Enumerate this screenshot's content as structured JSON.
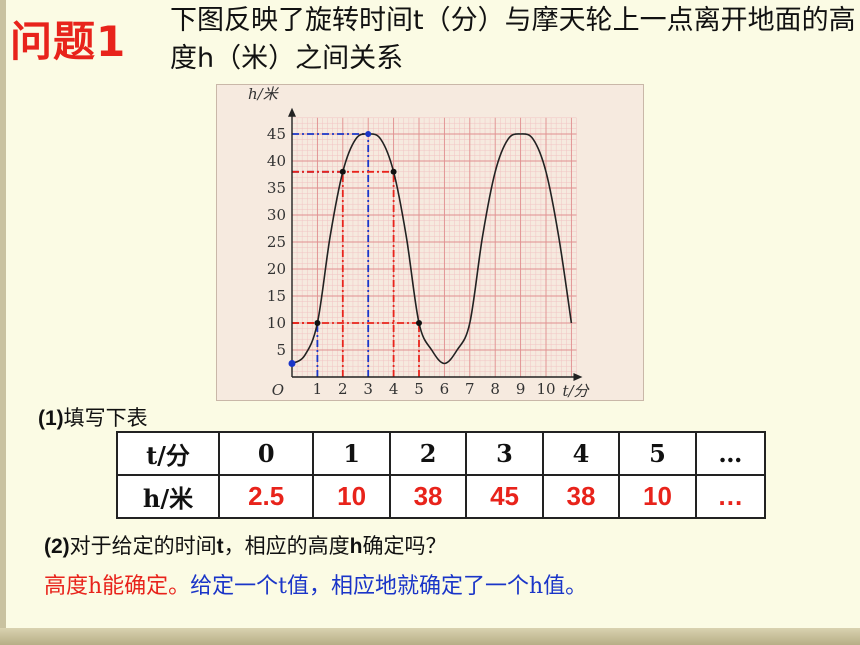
{
  "title_tag": "问题1",
  "question": "下图反映了旋转时间t（分）与摩天轮上一点离开地面的高度h（米）之间关系",
  "chart_data": {
    "type": "line",
    "ylabel": "h/米",
    "xlabel": "t/分",
    "origin_label": "O",
    "x_ticks": [
      1,
      2,
      3,
      4,
      5,
      6,
      7,
      8,
      9,
      10
    ],
    "y_ticks": [
      5,
      10,
      15,
      20,
      25,
      30,
      35,
      40,
      45
    ],
    "xlim": [
      0,
      11.2
    ],
    "ylim": [
      0,
      48
    ],
    "grid": true,
    "curve": {
      "x": [
        0,
        0.5,
        1,
        1.5,
        2,
        2.5,
        3,
        3.5,
        4,
        4.5,
        5,
        5.5,
        6,
        6.5,
        7,
        7.5,
        8,
        8.5,
        9,
        9.5,
        10,
        10.5,
        11
      ],
      "y": [
        2.5,
        4,
        10,
        26,
        38,
        44,
        45,
        44,
        38,
        26,
        10,
        5,
        2.5,
        5,
        10,
        26,
        38,
        44,
        45,
        44,
        38,
        26,
        10
      ]
    },
    "marked_points": [
      {
        "x": 0,
        "y": 2.5
      },
      {
        "x": 1,
        "y": 10
      },
      {
        "x": 2,
        "y": 38
      },
      {
        "x": 3,
        "y": 45
      },
      {
        "x": 4,
        "y": 38
      },
      {
        "x": 5,
        "y": 10
      }
    ]
  },
  "task1": {
    "num": "(1)",
    "text": "填写下表"
  },
  "table": {
    "row1_head": "t/分",
    "row2_head": "h/米",
    "t_values": [
      "0",
      "1",
      "2",
      "3",
      "4",
      "5",
      "…"
    ],
    "h_values": [
      "2.5",
      "10",
      "38",
      "45",
      "38",
      "10",
      "…"
    ]
  },
  "task2": {
    "num": "(2)",
    "text_a": "对于给定的时间",
    "var_t": "t",
    "text_b": "，相应的高度",
    "var_h": "h",
    "text_c": "确定吗？"
  },
  "answer": {
    "part1": "高度h能确定。",
    "part2": "给定一个t值，相应地就确定了一个h值。"
  },
  "colors": {
    "accent_red": "#e8231b",
    "accent_blue": "#1a35c8"
  }
}
